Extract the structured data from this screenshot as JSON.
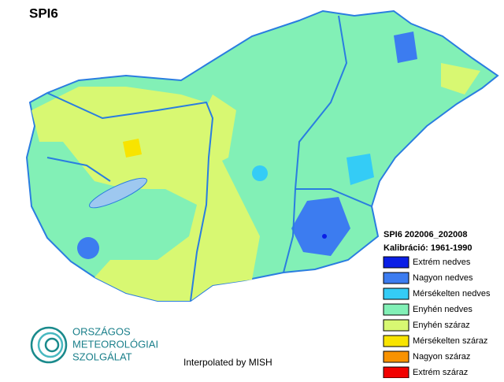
{
  "title": "SPI6",
  "legend": {
    "title": "SPI6 202006_202008",
    "subtitle": "Kalibráció: 1961-1990",
    "items": [
      {
        "label": "Extrém nedves",
        "color": "#0a1ee6"
      },
      {
        "label": "Nagyon nedves",
        "color": "#3c7cf0"
      },
      {
        "label": "Mérsékelten nedves",
        "color": "#34ccf6"
      },
      {
        "label": "Enyhén nedves",
        "color": "#82f0b6"
      },
      {
        "label": "Enyhén száraz",
        "color": "#d8f872"
      },
      {
        "label": "Mérsékelten száraz",
        "color": "#f8e400"
      },
      {
        "label": "Nagyon száraz",
        "color": "#f89200"
      },
      {
        "label": "Extrém száraz",
        "color": "#f20000"
      }
    ]
  },
  "credit": "Interpolated by MISH",
  "logo": {
    "lines": [
      "ORSZÁGOS",
      "METEOROLÓGIAI",
      "SZOLGÁLAT"
    ]
  }
}
